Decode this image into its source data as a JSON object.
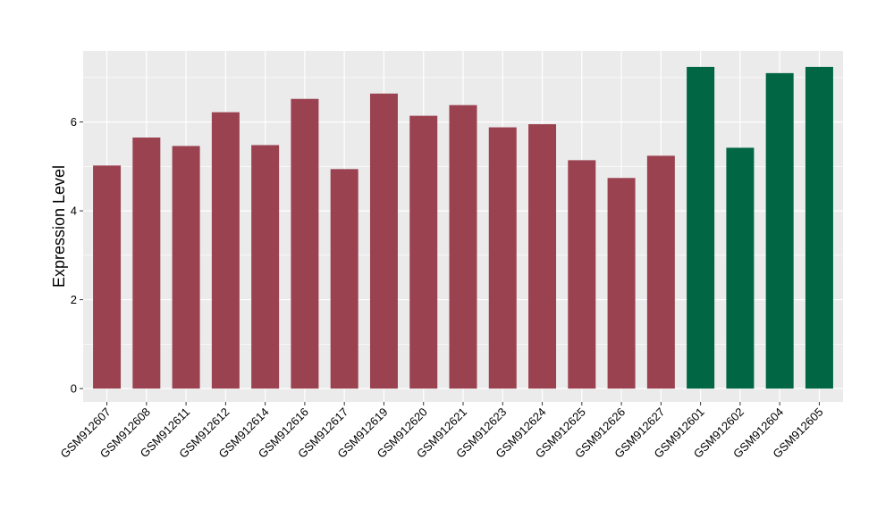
{
  "chart_data": {
    "type": "bar",
    "title": "",
    "xlabel": "",
    "ylabel": "Expression Level",
    "ylim": [
      -0.3,
      7.6
    ],
    "yticks": [
      0,
      2,
      4,
      6
    ],
    "grid": true,
    "legend": "none",
    "categories": [
      "GSM912607",
      "GSM912608",
      "GSM912611",
      "GSM912612",
      "GSM912614",
      "GSM912616",
      "GSM912617",
      "GSM912619",
      "GSM912620",
      "GSM912621",
      "GSM912623",
      "GSM912624",
      "GSM912625",
      "GSM912626",
      "GSM912627",
      "GSM912601",
      "GSM912602",
      "GSM912604",
      "GSM912605"
    ],
    "values": [
      5.02,
      5.65,
      5.46,
      6.22,
      5.48,
      6.52,
      4.94,
      6.64,
      6.14,
      6.38,
      5.88,
      5.95,
      5.14,
      4.74,
      5.24,
      7.24,
      5.42,
      7.1,
      7.24
    ],
    "groups": [
      "a",
      "a",
      "a",
      "a",
      "a",
      "a",
      "a",
      "a",
      "a",
      "a",
      "a",
      "a",
      "a",
      "a",
      "a",
      "b",
      "b",
      "b",
      "b"
    ],
    "colors": {
      "a": "#9a4250",
      "b": "#006644"
    },
    "panel_background": "#ebebeb",
    "gridline_color": "#ffffff"
  }
}
